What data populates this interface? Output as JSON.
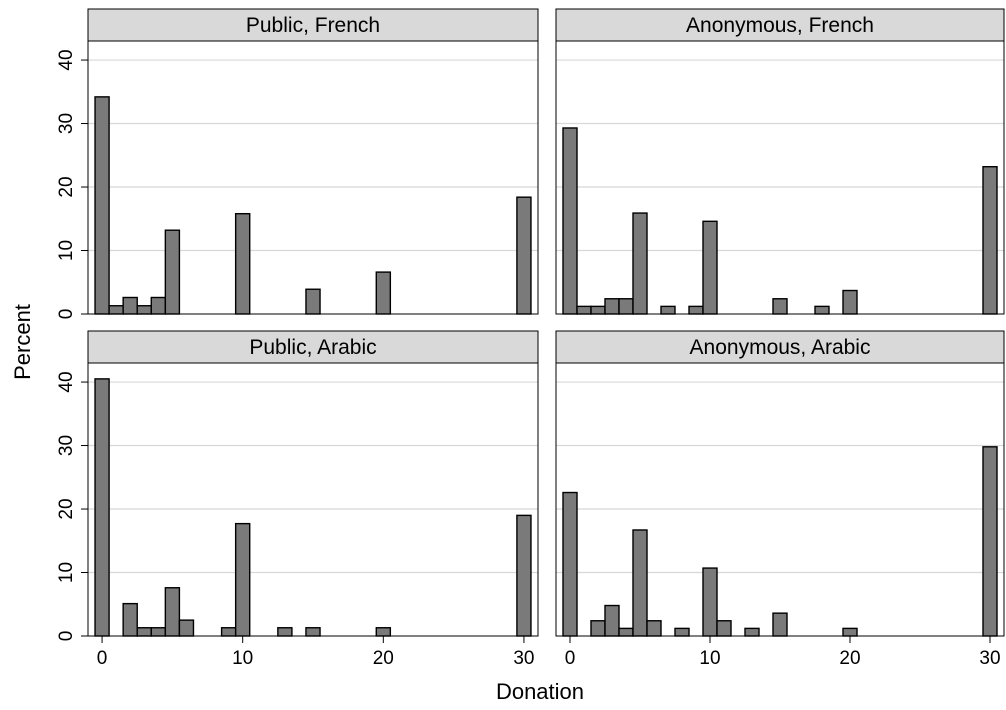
{
  "chart_data": {
    "type": "bar",
    "xlabel": "Donation",
    "ylabel": "Percent",
    "xlim": [
      -1,
      31
    ],
    "ylim": [
      0,
      43
    ],
    "xticks": [
      0,
      10,
      20,
      30
    ],
    "yticks": [
      0,
      10,
      20,
      30,
      40
    ],
    "bin_width": 1,
    "grid": true,
    "bar_color": "#7a7a7a",
    "strip_color": "#d9d9d9",
    "panels": [
      {
        "title": "Public, French",
        "bins": [
          {
            "x": 0,
            "y": 34.2
          },
          {
            "x": 1,
            "y": 1.3
          },
          {
            "x": 2,
            "y": 2.6
          },
          {
            "x": 3,
            "y": 1.3
          },
          {
            "x": 4,
            "y": 2.6
          },
          {
            "x": 5,
            "y": 13.2
          },
          {
            "x": 10,
            "y": 15.8
          },
          {
            "x": 15,
            "y": 3.9
          },
          {
            "x": 20,
            "y": 6.6
          },
          {
            "x": 30,
            "y": 18.4
          }
        ]
      },
      {
        "title": "Anonymous, French",
        "bins": [
          {
            "x": 0,
            "y": 29.3
          },
          {
            "x": 1,
            "y": 1.2
          },
          {
            "x": 2,
            "y": 1.2
          },
          {
            "x": 3,
            "y": 2.4
          },
          {
            "x": 4,
            "y": 2.4
          },
          {
            "x": 5,
            "y": 15.9
          },
          {
            "x": 7,
            "y": 1.2
          },
          {
            "x": 9,
            "y": 1.2
          },
          {
            "x": 10,
            "y": 14.6
          },
          {
            "x": 15,
            "y": 2.4
          },
          {
            "x": 18,
            "y": 1.2
          },
          {
            "x": 20,
            "y": 3.7
          },
          {
            "x": 30,
            "y": 23.2
          }
        ]
      },
      {
        "title": "Public, Arabic",
        "bins": [
          {
            "x": 0,
            "y": 40.5
          },
          {
            "x": 2,
            "y": 5.1
          },
          {
            "x": 3,
            "y": 1.3
          },
          {
            "x": 4,
            "y": 1.3
          },
          {
            "x": 5,
            "y": 7.6
          },
          {
            "x": 6,
            "y": 2.5
          },
          {
            "x": 9,
            "y": 1.3
          },
          {
            "x": 10,
            "y": 17.7
          },
          {
            "x": 13,
            "y": 1.3
          },
          {
            "x": 15,
            "y": 1.3
          },
          {
            "x": 20,
            "y": 1.3
          },
          {
            "x": 30,
            "y": 19.0
          }
        ]
      },
      {
        "title": "Anonymous, Arabic",
        "bins": [
          {
            "x": 0,
            "y": 22.6
          },
          {
            "x": 2,
            "y": 2.4
          },
          {
            "x": 3,
            "y": 4.8
          },
          {
            "x": 4,
            "y": 1.2
          },
          {
            "x": 5,
            "y": 16.7
          },
          {
            "x": 6,
            "y": 2.4
          },
          {
            "x": 8,
            "y": 1.2
          },
          {
            "x": 10,
            "y": 10.7
          },
          {
            "x": 11,
            "y": 2.4
          },
          {
            "x": 13,
            "y": 1.2
          },
          {
            "x": 15,
            "y": 3.6
          },
          {
            "x": 20,
            "y": 1.2
          },
          {
            "x": 30,
            "y": 29.8
          }
        ]
      }
    ]
  }
}
